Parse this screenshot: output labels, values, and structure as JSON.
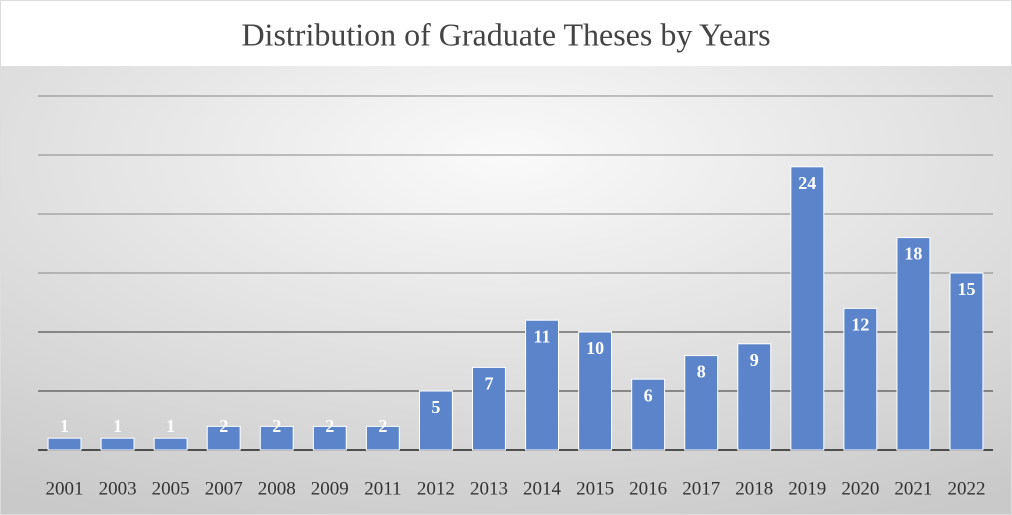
{
  "chart_data": {
    "type": "bar",
    "title": "Distribution of Graduate Theses by Years",
    "categories": [
      "2001",
      "2003",
      "2005",
      "2007",
      "2008",
      "2009",
      "2011",
      "2012",
      "2013",
      "2014",
      "2015",
      "2016",
      "2017",
      "2018",
      "2019",
      "2020",
      "2021",
      "2022"
    ],
    "values": [
      1,
      1,
      1,
      2,
      2,
      2,
      2,
      5,
      7,
      11,
      10,
      6,
      8,
      9,
      24,
      12,
      18,
      15
    ],
    "color": "#5b84cb",
    "ylim": [
      0,
      30
    ],
    "yticks": [
      0,
      5,
      10,
      15,
      20,
      25,
      30
    ],
    "grid": true
  }
}
